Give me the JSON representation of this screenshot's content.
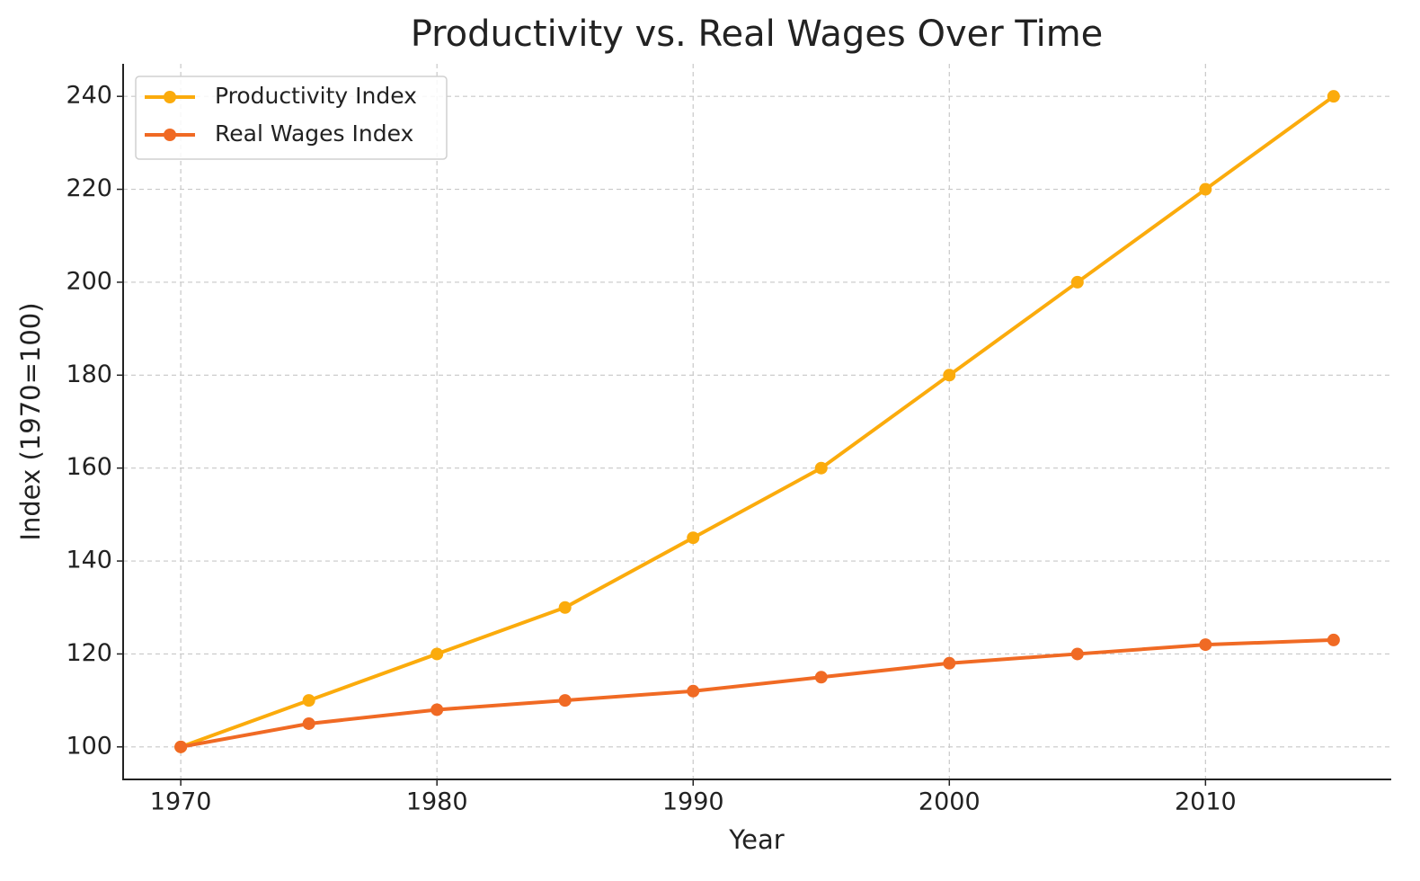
{
  "chart_data": {
    "type": "line",
    "title": "Productivity vs. Real Wages Over Time",
    "x_label": "Year",
    "y_label": "Index (1970=100)",
    "x": [
      1970,
      1975,
      1980,
      1985,
      1990,
      1995,
      2000,
      2005,
      2010,
      2015
    ],
    "series": [
      {
        "name": "Productivity Index",
        "color": "#fbab0c",
        "values": [
          100,
          110,
          120,
          130,
          145,
          160,
          180,
          200,
          220,
          240
        ]
      },
      {
        "name": "Real Wages Index",
        "color": "#f06a24",
        "values": [
          100,
          105,
          108,
          110,
          112,
          115,
          118,
          120,
          122,
          123
        ]
      }
    ],
    "xlim": [
      1967.75,
      2017.25
    ],
    "xticks": [
      1970,
      1980,
      1990,
      2000,
      2010
    ],
    "ylim": [
      93,
      247
    ],
    "yticks": [
      100,
      120,
      140,
      160,
      180,
      200,
      220,
      240
    ],
    "grid": true,
    "legend": "upper left"
  }
}
